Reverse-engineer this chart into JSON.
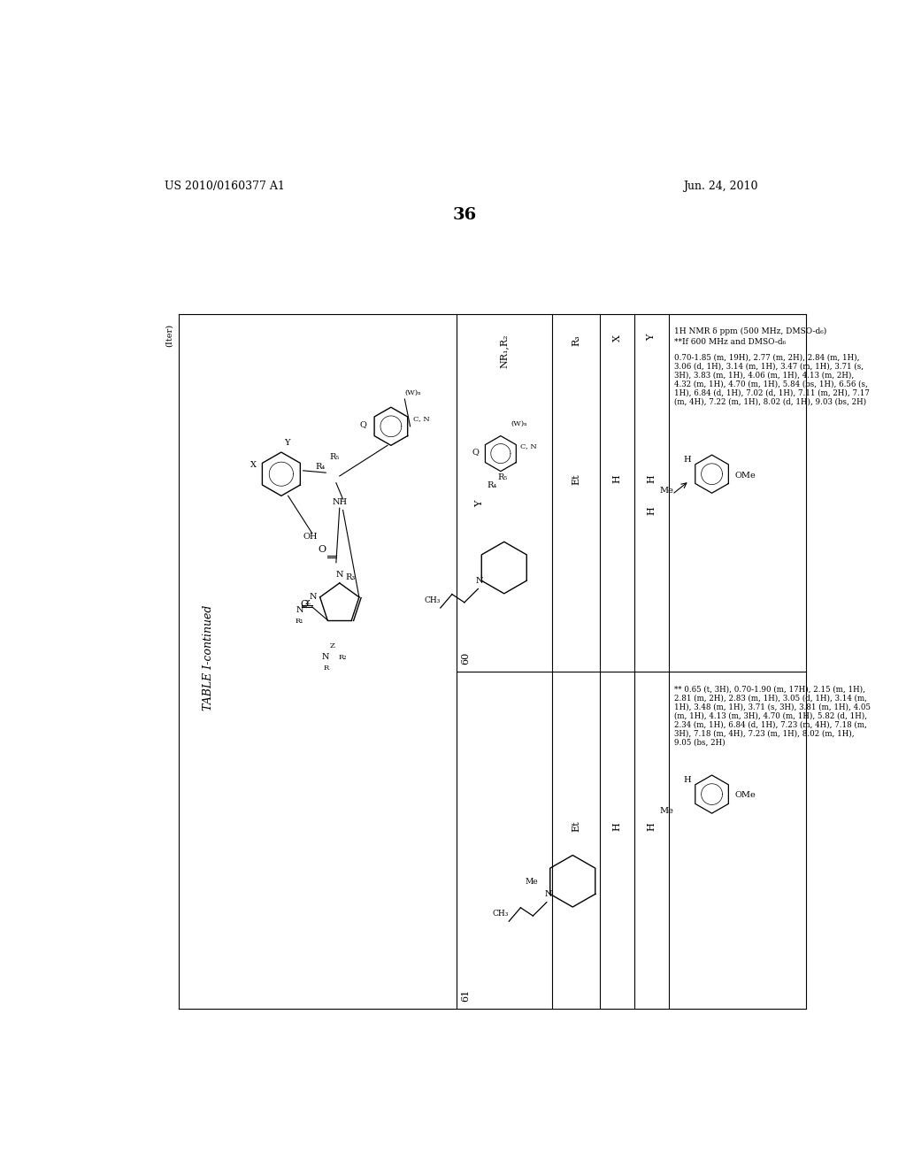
{
  "page_number": "36",
  "patent_number": "US 2010/0160377 A1",
  "patent_date": "Jun. 24, 2010",
  "table_title": "TABLE I-continued",
  "background_color": "#ffffff",
  "text_color": "#000000",
  "nmr_header_60": "1H NMR δ ppm (500 MHz, DMSO-d₆)",
  "nmr_note_60": "**If 600 MHz and DMSO-d₆",
  "nmr_lines_60": [
    "0.70-1.85 (m, 19H), 2.77 (m, 2H), 2.84 (m, 1H),",
    "3.06 (d, 1H), 3.14 (m, 1H), 3.47 (m, 1H), 3.71 (s,",
    "3H), 3.83 (m, 1H), 4.06 (m, 1H), 4.13 (m, 2H),",
    "4.32 (m, 1H), 4.70 (m, 1H), 5.84 (bs, 1H), 6.56 (s,",
    "1H), 6.84 (d, 1H), 7.02 (d, 1H), 7.11 (m, 2H), 7.17",
    "(m, 4H), 7.22 (m, 1H), 8.02 (d, 1H), 9.03 (bs, 2H)"
  ],
  "nmr_lines_61": [
    "** 0.65 (t, 3H), 0.70-1.90 (m, 17H), 2.15 (m, 1H),",
    "2.81 (m, 2H), 2.83 (m, 1H), 3.05 (d, 1H), 3.14 (m,",
    "1H), 3.48 (m, 1H), 3.71 (s, 3H), 3.81 (m, 1H), 4.05",
    "(m, 1H), 4.13 (m, 3H), 4.70 (m, 1H), 5.82 (d, 1H),",
    "2.34 (m, 1H), 6.84 (d, 1H), 7.23 (m, 4H), 7.18 (m,",
    "3H), 7.18 (m, 4H), 7.23 (m, 1H), 8.02 (m, 1H),",
    "9.05 (bs, 2H)"
  ]
}
